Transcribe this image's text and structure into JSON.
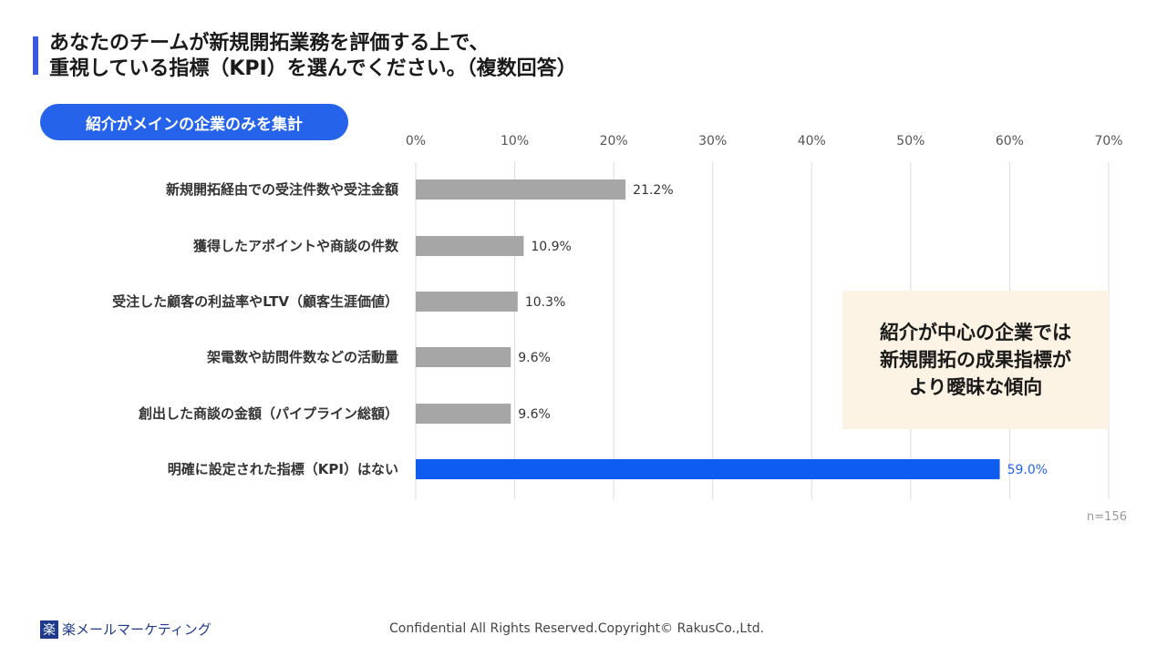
{
  "title": {
    "line1": "あなたのチームが新規開拓業務を評価する上で、",
    "line2": "重視している指標（KPI）を選んでください。（複数回答）"
  },
  "badge": "紹介がメインの企業のみを集計",
  "callout": {
    "line1": "紹介が中心の企業では",
    "line2": "新規開拓の成果指標が",
    "line3": "より曖昧な傾向"
  },
  "sample_size": "n=156",
  "logo": {
    "mark": "楽",
    "text": "楽メールマーケティング"
  },
  "footer": "Confidential All Rights Reserved.Copyright© RakusCo.,Ltd.",
  "colors": {
    "bar_default": "#a6a6a6",
    "bar_highlight": "#0f5cf0",
    "highlight_label": "#2563eb",
    "accent": "#3b5bdb",
    "callout_bg": "#fdf3e4"
  },
  "chart_data": {
    "type": "bar",
    "orientation": "horizontal",
    "categories": [
      "新規開拓経由での受注件数や受注金額",
      "獲得したアポイントや商談の件数",
      "受注した顧客の利益率やLTV（顧客生涯価値）",
      "架電数や訪問件数などの活動量",
      "創出した商談の金額（パイプライン総額）",
      "明確に設定された指標（KPI）はない"
    ],
    "values": [
      21.2,
      10.9,
      10.3,
      9.6,
      9.6,
      59.0
    ],
    "value_labels": [
      "21.2%",
      "10.9%",
      "10.3%",
      "9.6%",
      "9.6%",
      "59.0%"
    ],
    "highlight_index": 5,
    "xlim": [
      0,
      70
    ],
    "xticks": [
      0,
      10,
      20,
      30,
      40,
      50,
      60,
      70
    ],
    "xtick_labels": [
      "0%",
      "10%",
      "20%",
      "30%",
      "40%",
      "50%",
      "60%",
      "70%"
    ],
    "grid": true,
    "xaxis_position": "top"
  }
}
